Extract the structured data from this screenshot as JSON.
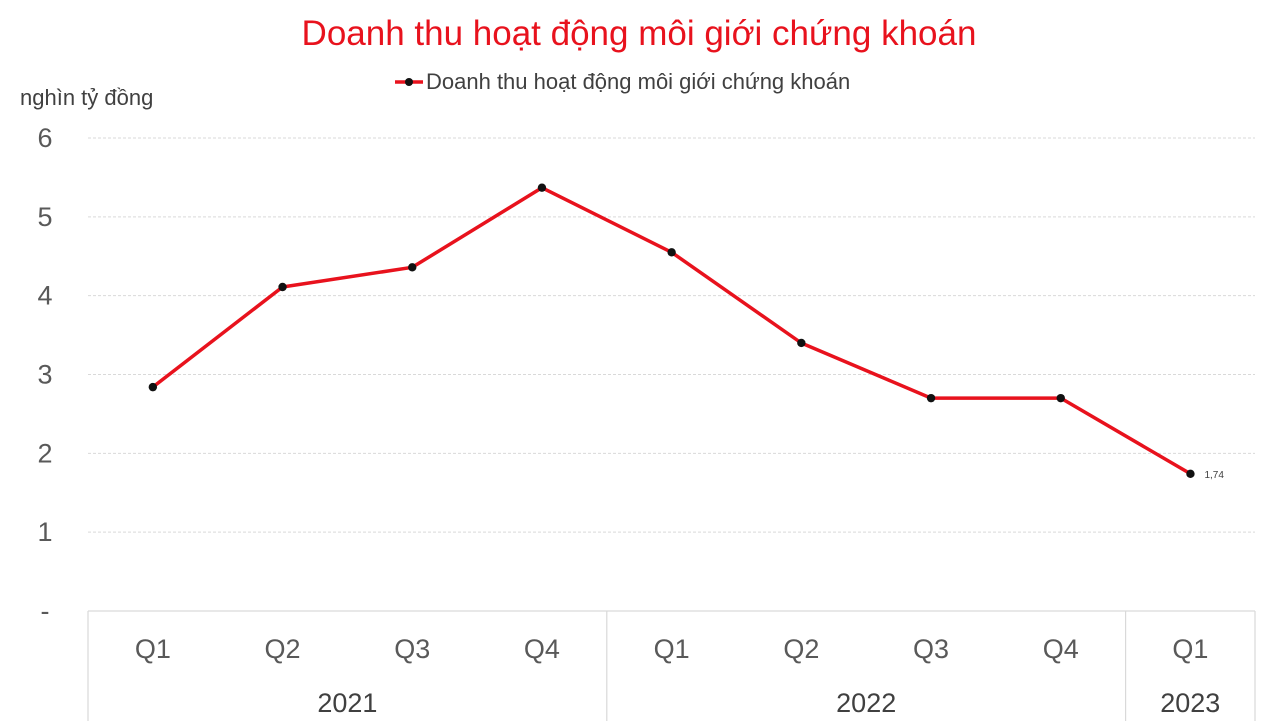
{
  "chart_data": {
    "type": "line",
    "title": "Doanh thu hoạt động môi giới chứng khoán",
    "ylabel": "nghìn tỷ đồng",
    "ylim": [
      0,
      6
    ],
    "yticks": [
      "-",
      "1",
      "2",
      "3",
      "4",
      "5",
      "6"
    ],
    "grid": true,
    "legend_position": "top-center",
    "categories": [
      "Q1",
      "Q2",
      "Q3",
      "Q4",
      "Q1",
      "Q2",
      "Q3",
      "Q4",
      "Q1"
    ],
    "groups": [
      {
        "label": "2021",
        "count": 4
      },
      {
        "label": "2022",
        "count": 4
      },
      {
        "label": "2023",
        "count": 1
      }
    ],
    "series": [
      {
        "name": "Doanh thu hoạt động môi giới chứng khoán",
        "color": "#e8121d",
        "marker_color": "#111111",
        "values": [
          2.84,
          4.11,
          4.36,
          5.37,
          4.55,
          3.4,
          2.7,
          2.7,
          1.74
        ]
      }
    ],
    "data_labels": [
      {
        "index": 8,
        "text": "1,74"
      }
    ]
  }
}
